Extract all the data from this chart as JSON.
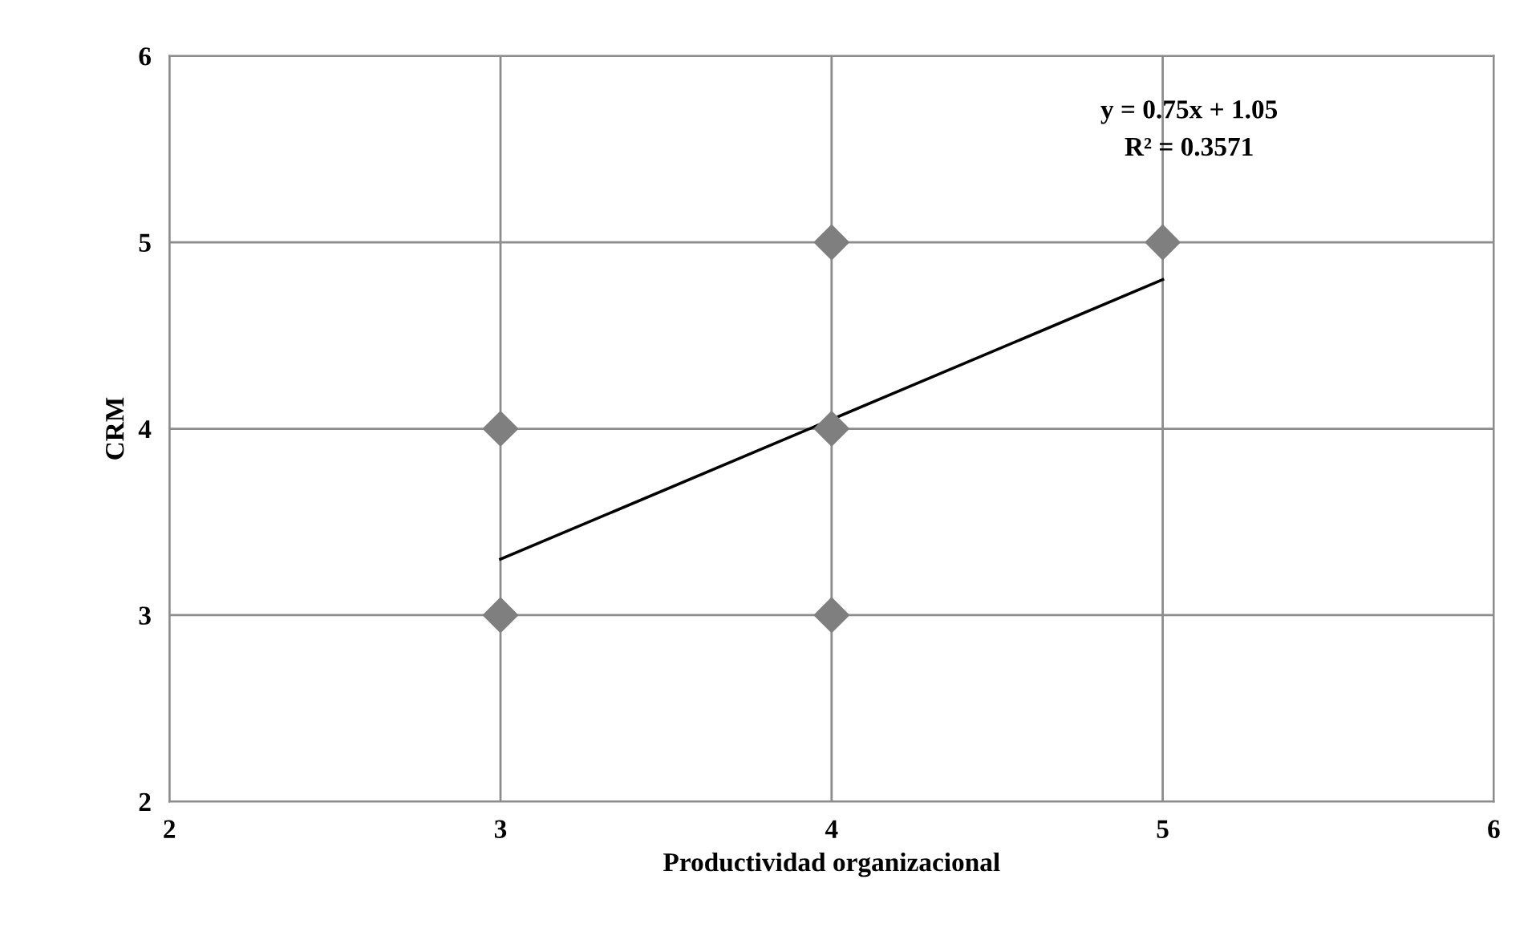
{
  "chart_data": {
    "type": "scatter",
    "xlabel": "Productividad organizacional",
    "ylabel": "CRM",
    "series": [
      {
        "color": "#7f7f7f",
        "marker": "diamond",
        "x": [
          3,
          3,
          4,
          4,
          4,
          5
        ],
        "values": [
          3,
          4,
          3,
          4,
          5,
          5
        ]
      },
      {
        "type": "line",
        "color": "#000000",
        "marker": "none",
        "line_style": "solid",
        "x": [
          3,
          5
        ],
        "values": [
          3.3,
          4.8
        ]
      }
    ],
    "xlim": [
      2,
      6
    ],
    "ylim": [
      2,
      6
    ],
    "xticks": [
      2,
      3,
      4,
      5,
      6
    ],
    "yticks": [
      2,
      3,
      4,
      5,
      6
    ],
    "grid": true,
    "annotations": [
      "y = 0.75x + 1.05",
      "R² = 0.3571"
    ]
  }
}
